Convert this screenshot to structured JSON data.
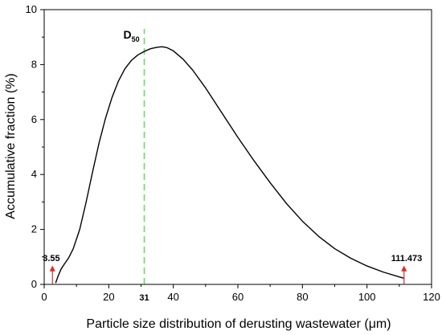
{
  "chart_data": {
    "type": "line",
    "title": "",
    "xlabel": "Particle size distribution of derusting wastewater (μm)",
    "ylabel": "Accumulative fraction (%)",
    "xlim": [
      0,
      120
    ],
    "ylim": [
      0,
      10
    ],
    "x_ticks": [
      "0",
      "20",
      "40",
      "60",
      "80",
      "100",
      "120"
    ],
    "y_ticks": [
      "0",
      "2",
      "4",
      "6",
      "8",
      "10"
    ],
    "grid": false,
    "legend": "none",
    "series": [
      {
        "color": "#000000",
        "x": [
          3.55,
          4.3,
          5.2,
          6.3,
          7.5,
          9,
          11,
          13,
          15,
          17,
          19,
          21,
          23,
          25,
          27,
          29,
          31,
          33,
          35,
          36.5,
          38,
          40,
          43,
          46,
          50,
          55,
          60,
          65,
          70,
          75,
          80,
          85,
          90,
          95,
          100,
          105,
          111.473
        ],
        "y": [
          0.05,
          0.3,
          0.55,
          0.75,
          0.95,
          1.3,
          2.0,
          3.0,
          4.1,
          5.15,
          6.05,
          6.8,
          7.4,
          7.85,
          8.15,
          8.35,
          8.48,
          8.58,
          8.63,
          8.65,
          8.62,
          8.5,
          8.2,
          7.8,
          7.15,
          6.25,
          5.35,
          4.5,
          3.7,
          2.95,
          2.3,
          1.75,
          1.3,
          0.95,
          0.67,
          0.45,
          0.22
        ]
      }
    ],
    "d50_line": {
      "x": 31,
      "color": "#66dd66",
      "label": "D50"
    },
    "annotations": [
      {
        "text": "3.55",
        "x": 3.55,
        "color": "#d32f2f"
      },
      {
        "text": "111.473",
        "x": 111.473,
        "color": "#d32f2f"
      },
      {
        "text": "31",
        "x": 31
      }
    ]
  }
}
